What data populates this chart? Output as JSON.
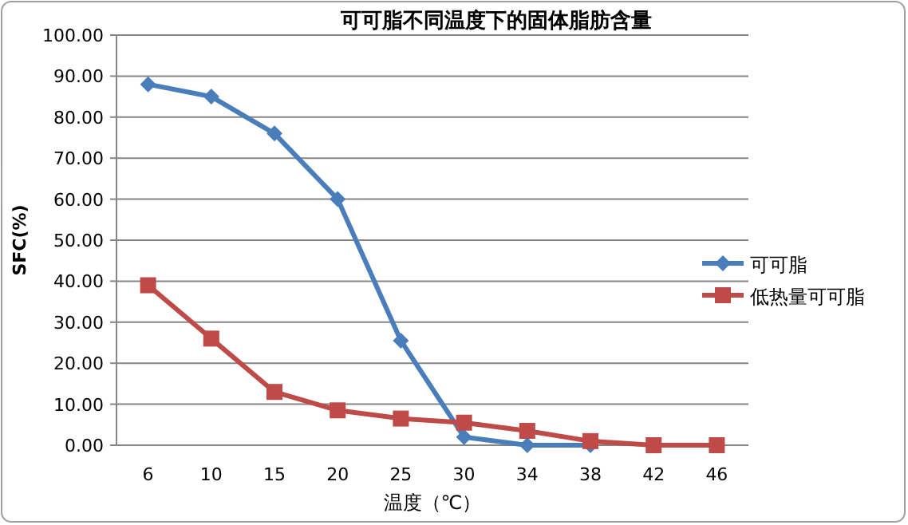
{
  "chart_data": {
    "type": "line",
    "title": "可可脂不同温度下的固体脂肪含量",
    "xlabel": "温度（℃）",
    "ylabel": "SFC(%)",
    "categories": [
      "6",
      "10",
      "15",
      "20",
      "25",
      "30",
      "34",
      "38",
      "42",
      "46"
    ],
    "series": [
      {
        "name": "可可脂",
        "color": "#4a7ebb",
        "marker": "diamond",
        "values": [
          88,
          85,
          76,
          60,
          25.5,
          2,
          0,
          0,
          null,
          null
        ]
      },
      {
        "name": "低热量可可脂",
        "color": "#be4b48",
        "marker": "square",
        "values": [
          39,
          26,
          13,
          8.5,
          6.5,
          5.5,
          3.5,
          1,
          0,
          0
        ]
      }
    ],
    "ylim": [
      0,
      100
    ],
    "yticks": [
      {
        "value": 0,
        "label": "0.00"
      },
      {
        "value": 10,
        "label": "10.00"
      },
      {
        "value": 20,
        "label": "20.00"
      },
      {
        "value": 30,
        "label": "30.00"
      },
      {
        "value": 40,
        "label": "40.00"
      },
      {
        "value": 50,
        "label": "50.00"
      },
      {
        "value": 60,
        "label": "60.00"
      },
      {
        "value": 70,
        "label": "70.00"
      },
      {
        "value": 80,
        "label": "80.00"
      },
      {
        "value": 90,
        "label": "90.00"
      },
      {
        "value": 100,
        "label": "100.00"
      }
    ],
    "grid": "y",
    "legend": "right",
    "line_style": "solid"
  }
}
